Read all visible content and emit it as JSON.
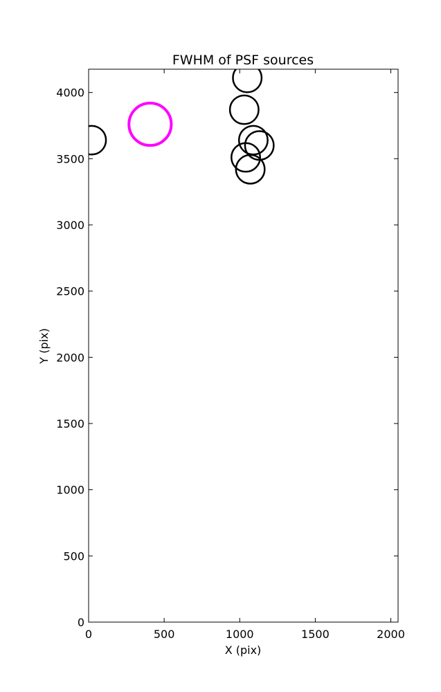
{
  "chart_data": {
    "type": "scatter",
    "title": "FWHM of PSF sources",
    "xlabel": "X (pix)",
    "ylabel": "Y (pix)",
    "xlim": [
      0,
      2048
    ],
    "ylim": [
      0,
      4176
    ],
    "xticks": [
      0,
      500,
      1000,
      1500,
      2000
    ],
    "yticks": [
      0,
      500,
      1000,
      1500,
      2000,
      2500,
      3000,
      3500,
      4000
    ],
    "grid": false,
    "marker": "open-circle",
    "highlight_color": "#ff00ff",
    "marker_color": "#000000",
    "highlight": {
      "x": 407,
      "y": 3760,
      "r": 140
    },
    "sources": [
      {
        "x": 1050,
        "y": 4110,
        "r": 95
      },
      {
        "x": 1030,
        "y": 3870,
        "r": 95
      },
      {
        "x": 1130,
        "y": 3600,
        "r": 95
      },
      {
        "x": 1090,
        "y": 3640,
        "r": 95
      },
      {
        "x": 20,
        "y": 3640,
        "r": 95
      },
      {
        "x": 1040,
        "y": 3510,
        "r": 95
      },
      {
        "x": 1070,
        "y": 3420,
        "r": 95
      }
    ]
  }
}
